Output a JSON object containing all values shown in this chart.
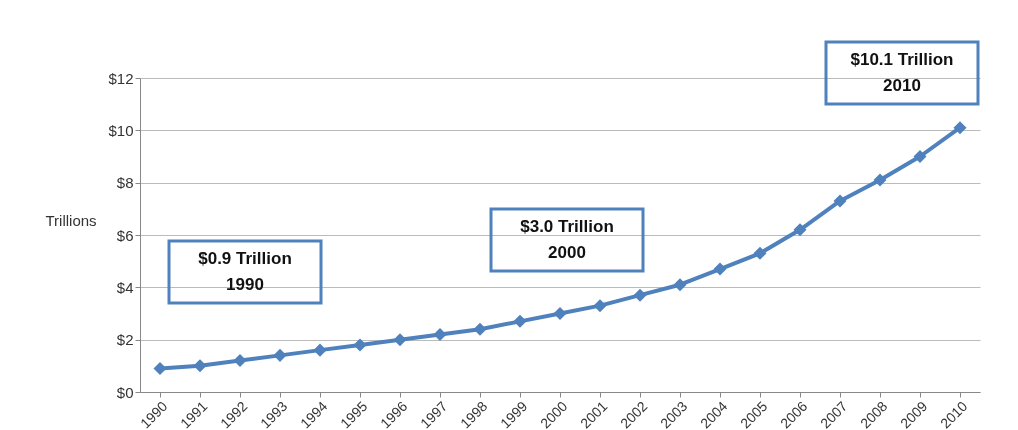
{
  "chart_data": {
    "type": "line",
    "ylabel": "Trillions",
    "categories": [
      "1990",
      "1991",
      "1992",
      "1993",
      "1994",
      "1995",
      "1996",
      "1997",
      "1998",
      "1999",
      "2000",
      "2001",
      "2002",
      "2003",
      "2004",
      "2005",
      "2006",
      "2007",
      "2008",
      "2009",
      "2010"
    ],
    "series": [
      {
        "color": "#4f81bd",
        "values": [
          0.9,
          1.0,
          1.2,
          1.4,
          1.6,
          1.8,
          2.0,
          2.2,
          2.4,
          2.7,
          3.0,
          3.3,
          3.7,
          4.1,
          4.7,
          5.3,
          6.2,
          7.3,
          8.1,
          9.0,
          10.1
        ]
      }
    ],
    "ylim": [
      0,
      12
    ],
    "yticks": [
      {
        "value": 0,
        "label": "$0"
      },
      {
        "value": 2,
        "label": "$2"
      },
      {
        "value": 4,
        "label": "$4"
      },
      {
        "value": 6,
        "label": "$6"
      },
      {
        "value": 8,
        "label": "$8"
      },
      {
        "value": 10,
        "label": "$10"
      },
      {
        "value": 12,
        "label": "$12"
      }
    ],
    "grid": "y",
    "marker": "diamond",
    "line_style": "solid",
    "annotations": [
      "$0.9 Trillion\n1990",
      "$3.0 Trillion\n2000",
      "$10.1 Trillion\n2010"
    ]
  }
}
